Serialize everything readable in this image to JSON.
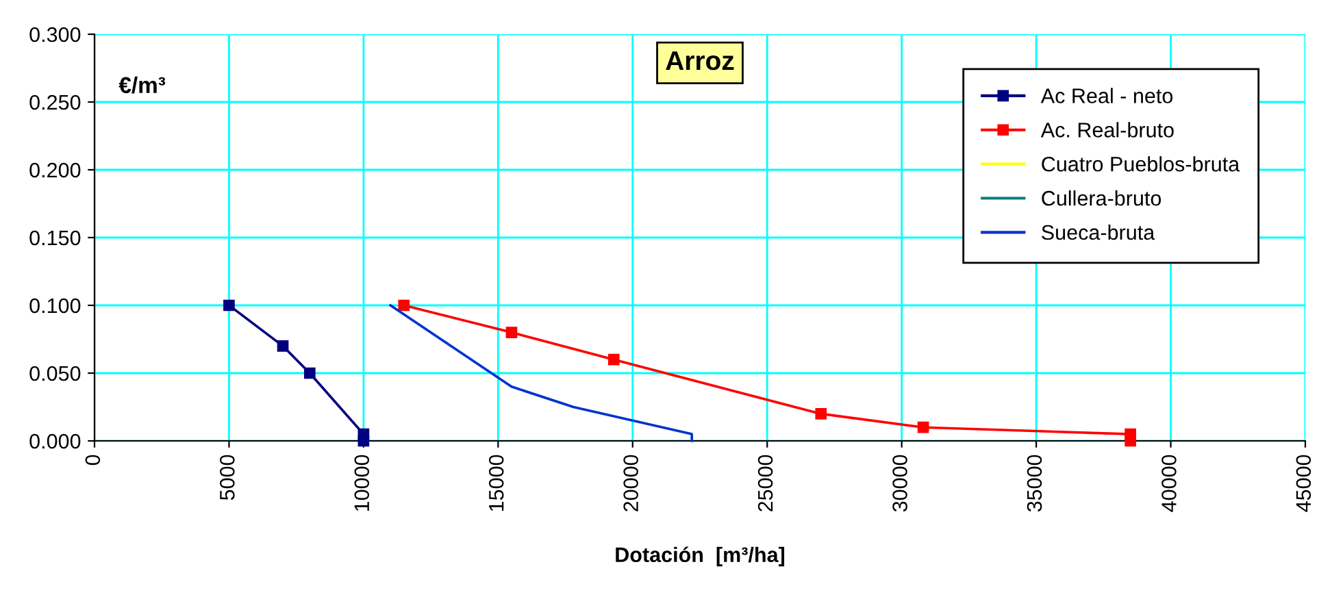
{
  "chart_data": {
    "type": "line",
    "title": "Arroz",
    "xlabel": "Dotación  [m³/ha]",
    "annotations": [
      "€/m³"
    ],
    "xlim": [
      0,
      45000
    ],
    "xticks": [
      0,
      5000,
      10000,
      15000,
      20000,
      25000,
      30000,
      35000,
      40000,
      45000
    ],
    "ylim": [
      0,
      0.3
    ],
    "yticks": [
      {
        "value": 0,
        "label": "0.000"
      },
      {
        "value": 0.05,
        "label": "0.050"
      },
      {
        "value": 0.1,
        "label": "0.100"
      },
      {
        "value": 0.15,
        "label": "0.150"
      },
      {
        "value": 0.2,
        "label": "0.200"
      },
      {
        "value": 0.25,
        "label": "0.250"
      },
      {
        "value": 0.3,
        "label": "0.300"
      }
    ],
    "grid": true,
    "legend": "top right",
    "series": [
      {
        "name": "Ac Real - neto",
        "color": "#000080",
        "marker": "square",
        "x": [
          5000,
          7000,
          8000,
          10000,
          10000
        ],
        "values": [
          0.1,
          0.07,
          0.05,
          0.005,
          0.0
        ]
      },
      {
        "name": "Ac. Real-bruto",
        "color": "#ff0000",
        "marker": "square",
        "x": [
          11500,
          15500,
          19300,
          27000,
          30800,
          38500,
          38500
        ],
        "values": [
          0.1,
          0.08,
          0.06,
          0.02,
          0.01,
          0.005,
          0.0
        ]
      },
      {
        "name": "Cuatro Pueblos-bruta",
        "color": "#ffff00",
        "marker": "none",
        "values": [
          null,
          null,
          null,
          null,
          null
        ]
      },
      {
        "name": "Cullera-bruto",
        "color": "#008080",
        "marker": "none",
        "values": [
          null,
          null,
          null,
          null,
          null
        ]
      },
      {
        "name": "Sueca-bruta",
        "color": "#0033cc",
        "marker": "none",
        "x": [
          11000,
          15500,
          17800,
          22200,
          22200
        ],
        "values": [
          0.1,
          0.04,
          0.025,
          0.005,
          0.0
        ]
      }
    ]
  }
}
